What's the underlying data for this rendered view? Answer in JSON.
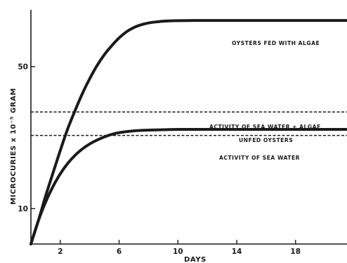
{
  "chart_data": {
    "type": "line",
    "title": "",
    "xlabel": "DAYS",
    "ylabel": "MICROCURIES x 10⁻⁵ GRAM",
    "xlim": [
      0,
      21.5
    ],
    "ylim": [
      0,
      66
    ],
    "x_ticks": [
      {
        "value": 2,
        "label": "2"
      },
      {
        "value": 6,
        "label": "6"
      },
      {
        "value": 10,
        "label": "10"
      },
      {
        "value": 14,
        "label": "14"
      },
      {
        "value": 18,
        "label": "18"
      }
    ],
    "y_ticks": [
      {
        "value": 10,
        "label": "10"
      },
      {
        "value": 50,
        "label": "50"
      }
    ],
    "grid": false,
    "legend": "none",
    "series": [
      {
        "style": "solid",
        "x": [
          0,
          0.5,
          1,
          1.5,
          2,
          2.5,
          3,
          3.5,
          4,
          4.5,
          5,
          5.5,
          6,
          6.5,
          7,
          7.5,
          8,
          8.5,
          9,
          9.5,
          10,
          11,
          12,
          14,
          16,
          18,
          20,
          21.5
        ],
        "y": [
          0,
          6.5,
          13.5,
          20,
          26.4,
          32.4,
          37.6,
          42.4,
          46.6,
          50.3,
          53.4,
          55.9,
          58.1,
          59.8,
          61.0,
          61.8,
          62.3,
          62.6,
          62.8,
          62.9,
          62.95,
          63,
          63,
          63,
          63,
          63,
          63,
          63
        ]
      },
      {
        "style": "solid",
        "x": [
          0,
          0.5,
          1,
          1.5,
          2,
          2.5,
          3,
          3.5,
          4,
          4.5,
          5,
          5.5,
          6,
          7,
          8,
          9,
          10,
          12,
          14,
          16,
          18,
          20,
          21.5
        ],
        "y": [
          0,
          6.5,
          11.8,
          16.2,
          19.8,
          22.7,
          25.0,
          26.8,
          28.2,
          29.3,
          30.2,
          30.9,
          31.4,
          31.9,
          32.1,
          32.2,
          32.3,
          32.3,
          32.3,
          32.3,
          32.3,
          32.3,
          32.3
        ]
      }
    ],
    "reference_lines": [
      {
        "style": "dashed",
        "y": 37.2
      },
      {
        "style": "dashed",
        "y": 30.6
      }
    ],
    "annotations": [
      {
        "text": "OYSTERS FED WITH ALGAE",
        "target": "upper curve"
      },
      {
        "text": "ACTIVITY OF SEA WATER + ALGAE",
        "target": "upper dashed line"
      },
      {
        "text": "UNFED OYSTERS",
        "target": "lower curve"
      },
      {
        "text": "ACTIVITY OF SEA WATER",
        "target": "lower dashed line"
      }
    ]
  }
}
